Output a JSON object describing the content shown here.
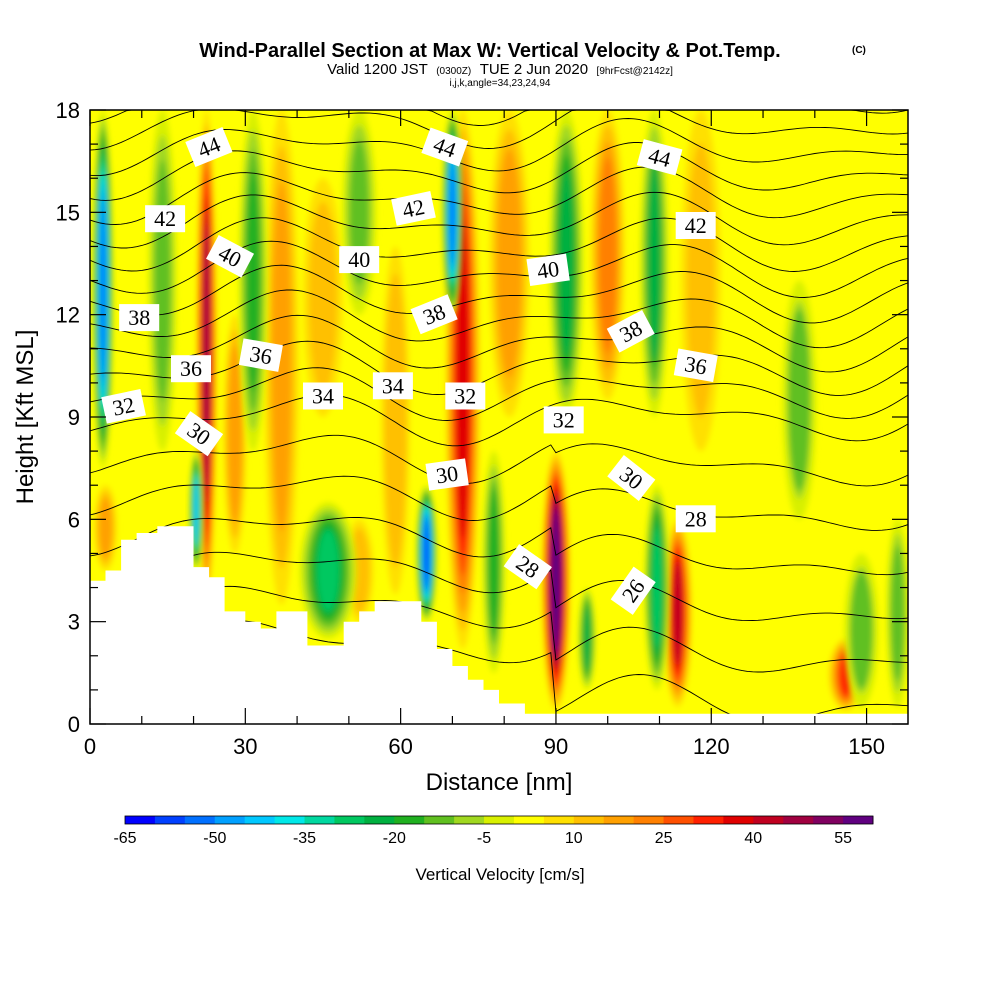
{
  "header": {
    "title": "Wind-Parallel Section at Max W: Vertical Velocity & Pot.Temp.",
    "title_tag": "(C)",
    "subtitle_valid": "Valid 1200 JST",
    "subtitle_utc": "(0300Z)",
    "subtitle_date": "TUE 2 Jun 2020",
    "subtitle_fcst": "[9hrFcst@2142z]",
    "subtitle_indices": "i,j,k,angle=34,23,24,94"
  },
  "chart_data": {
    "type": "heatmap",
    "title": "Wind-Parallel Section at Max W: Vertical Velocity & Pot.Temp.",
    "xlabel": "Distance [nm]",
    "ylabel": "Height [Kft MSL]",
    "xlim": [
      0,
      158
    ],
    "ylim": [
      0,
      18
    ],
    "xticks": [
      0,
      30,
      60,
      90,
      120,
      150
    ],
    "yticks": [
      0,
      3,
      6,
      9,
      12,
      15,
      18
    ],
    "colorbar": {
      "label": "Vertical Velocity [cm/s]",
      "tick_labels": [
        -65,
        -50,
        -35,
        -20,
        -5,
        10,
        25,
        40,
        55
      ],
      "colors": [
        "#0000ff",
        "#0040ff",
        "#0070ff",
        "#00a0ff",
        "#00c8ff",
        "#00e8e8",
        "#00d8a0",
        "#00c860",
        "#00b040",
        "#20b020",
        "#60c020",
        "#a0d820",
        "#d8f000",
        "#ffff00",
        "#ffe000",
        "#ffc000",
        "#ffa000",
        "#ff8000",
        "#ff5000",
        "#ff2000",
        "#e00000",
        "#c00020",
        "#a00040",
        "#800060",
        "#600080"
      ]
    },
    "fill_background": "#ffff00",
    "updrafts": [
      {
        "x": 22.5,
        "yTop": 18.0,
        "yBot": 3.5,
        "w": 1.8,
        "peak": 45
      },
      {
        "x": 28.0,
        "yTop": 12.0,
        "yBot": 5.0,
        "w": 2.0,
        "peak": 18
      },
      {
        "x": 37.0,
        "yTop": 18.0,
        "yBot": 3.5,
        "w": 3.0,
        "peak": 15
      },
      {
        "x": 45.0,
        "yTop": 16.0,
        "yBot": 9.0,
        "w": 3.5,
        "peak": 10
      },
      {
        "x": 59.0,
        "yTop": 14.0,
        "yBot": 3.8,
        "w": 2.5,
        "peak": 14
      },
      {
        "x": 72.0,
        "yTop": 18.0,
        "yBot": 2.2,
        "w": 3.0,
        "peak": 38
      },
      {
        "x": 81.0,
        "yTop": 18.0,
        "yBot": 9.0,
        "w": 3.5,
        "peak": 18
      },
      {
        "x": 90.0,
        "yTop": 8.0,
        "yBot": 0.4,
        "w": 2.5,
        "peak": 60
      },
      {
        "x": 100.0,
        "yTop": 18.0,
        "yBot": 9.5,
        "w": 3.0,
        "peak": 22
      },
      {
        "x": 113.5,
        "yTop": 6.0,
        "yBot": 0.5,
        "w": 2.5,
        "peak": 40
      },
      {
        "x": 118.0,
        "yTop": 18.0,
        "yBot": 8.0,
        "w": 3.5,
        "peak": 10
      },
      {
        "x": 146.0,
        "yTop": 2.5,
        "yBot": 0.4,
        "w": 3.0,
        "peak": 30
      },
      {
        "x": 3.0,
        "yTop": 7.0,
        "yBot": 4.5,
        "w": 2.0,
        "peak": 15
      },
      {
        "x": 52.0,
        "yTop": 6.0,
        "yBot": 3.0,
        "w": 2.5,
        "peak": 12
      }
    ],
    "downdrafts": [
      {
        "x": 2.5,
        "yTop": 18.0,
        "yBot": 7.5,
        "w": 1.8,
        "peak": -55
      },
      {
        "x": 14.0,
        "yTop": 18.0,
        "yBot": 8.0,
        "w": 2.5,
        "peak": -15
      },
      {
        "x": 20.5,
        "yTop": 8.0,
        "yBot": 4.5,
        "w": 1.2,
        "peak": -45
      },
      {
        "x": 31.5,
        "yTop": 18.0,
        "yBot": 8.0,
        "w": 2.5,
        "peak": -20
      },
      {
        "x": 46.0,
        "yTop": 6.5,
        "yBot": 2.5,
        "w": 5.0,
        "peak": -28
      },
      {
        "x": 52.0,
        "yTop": 18.0,
        "yBot": 12.0,
        "w": 3.0,
        "peak": -15
      },
      {
        "x": 65.0,
        "yTop": 7.0,
        "yBot": 3.0,
        "w": 1.8,
        "peak": -60
      },
      {
        "x": 70.0,
        "yTop": 18.0,
        "yBot": 12.0,
        "w": 1.8,
        "peak": -55
      },
      {
        "x": 78.0,
        "yTop": 8.0,
        "yBot": 1.5,
        "w": 2.0,
        "peak": -18
      },
      {
        "x": 92.0,
        "yTop": 18.0,
        "yBot": 9.0,
        "w": 3.0,
        "peak": -25
      },
      {
        "x": 96.0,
        "yTop": 4.0,
        "yBot": 1.0,
        "w": 1.5,
        "peak": -25
      },
      {
        "x": 109.0,
        "yTop": 18.0,
        "yBot": 9.0,
        "w": 2.5,
        "peak": -22
      },
      {
        "x": 109.5,
        "yTop": 7.0,
        "yBot": 1.0,
        "w": 2.2,
        "peak": -30
      },
      {
        "x": 137.0,
        "yTop": 13.0,
        "yBot": 6.0,
        "w": 3.0,
        "peak": -12
      },
      {
        "x": 149.0,
        "yTop": 5.0,
        "yBot": 0.5,
        "w": 3.0,
        "peak": -12
      },
      {
        "x": 156.0,
        "yTop": 6.0,
        "yBot": 0.5,
        "w": 2.0,
        "peak": -14
      }
    ],
    "terrain": [
      [
        0,
        4.2
      ],
      [
        3,
        4.2
      ],
      [
        3,
        4.5
      ],
      [
        6,
        4.5
      ],
      [
        6,
        5.4
      ],
      [
        9,
        5.4
      ],
      [
        9,
        5.6
      ],
      [
        13,
        5.6
      ],
      [
        13,
        5.8
      ],
      [
        20,
        5.8
      ],
      [
        20,
        4.6
      ],
      [
        23,
        4.6
      ],
      [
        23,
        4.3
      ],
      [
        26,
        4.3
      ],
      [
        26,
        3.3
      ],
      [
        30,
        3.3
      ],
      [
        30,
        3.0
      ],
      [
        33,
        3.0
      ],
      [
        33,
        2.8
      ],
      [
        36,
        2.8
      ],
      [
        36,
        3.3
      ],
      [
        42,
        3.3
      ],
      [
        42,
        2.3
      ],
      [
        49,
        2.3
      ],
      [
        49,
        3.0
      ],
      [
        52,
        3.0
      ],
      [
        52,
        3.3
      ],
      [
        55,
        3.3
      ],
      [
        55,
        3.6
      ],
      [
        64,
        3.6
      ],
      [
        64,
        3.0
      ],
      [
        67,
        3.0
      ],
      [
        67,
        2.2
      ],
      [
        70,
        2.2
      ],
      [
        70,
        1.7
      ],
      [
        73,
        1.7
      ],
      [
        73,
        1.3
      ],
      [
        76,
        1.3
      ],
      [
        76,
        1.0
      ],
      [
        79,
        1.0
      ],
      [
        79,
        0.6
      ],
      [
        84,
        0.6
      ],
      [
        84,
        0.3
      ],
      [
        158,
        0.3
      ]
    ],
    "theta_contours": {
      "min": 26,
      "max": 45,
      "step": 1,
      "label_values": [
        26,
        28,
        30,
        32,
        34,
        36,
        38,
        40,
        42,
        44
      ]
    },
    "contour_labels": [
      {
        "text": "44",
        "x": 23.0,
        "y": 16.9,
        "angle": -22
      },
      {
        "text": "42",
        "x": 14.5,
        "y": 14.8,
        "angle": 0
      },
      {
        "text": "40",
        "x": 27.0,
        "y": 13.7,
        "angle": 28
      },
      {
        "text": "38",
        "x": 9.5,
        "y": 11.9,
        "angle": 0
      },
      {
        "text": "36",
        "x": 19.5,
        "y": 10.4,
        "angle": 0
      },
      {
        "text": "36",
        "x": 33.0,
        "y": 10.8,
        "angle": 10
      },
      {
        "text": "32",
        "x": 6.5,
        "y": 9.3,
        "angle": -12
      },
      {
        "text": "30",
        "x": 21.0,
        "y": 8.5,
        "angle": 35
      },
      {
        "text": "34",
        "x": 45.0,
        "y": 9.6,
        "angle": 0
      },
      {
        "text": "34",
        "x": 58.5,
        "y": 9.9,
        "angle": 0
      },
      {
        "text": "40",
        "x": 52.0,
        "y": 13.6,
        "angle": 0
      },
      {
        "text": "42",
        "x": 62.5,
        "y": 15.1,
        "angle": -12
      },
      {
        "text": "44",
        "x": 68.5,
        "y": 16.9,
        "angle": 20
      },
      {
        "text": "38",
        "x": 66.5,
        "y": 12.0,
        "angle": -22
      },
      {
        "text": "32",
        "x": 72.5,
        "y": 9.6,
        "angle": 0
      },
      {
        "text": "30",
        "x": 69.0,
        "y": 7.3,
        "angle": -8
      },
      {
        "text": "40",
        "x": 88.5,
        "y": 13.3,
        "angle": -8
      },
      {
        "text": "32",
        "x": 91.5,
        "y": 8.9,
        "angle": 0
      },
      {
        "text": "28",
        "x": 84.5,
        "y": 4.6,
        "angle": 35
      },
      {
        "text": "44",
        "x": 110.0,
        "y": 16.6,
        "angle": 15
      },
      {
        "text": "42",
        "x": 117.0,
        "y": 14.6,
        "angle": 0
      },
      {
        "text": "38",
        "x": 104.5,
        "y": 11.5,
        "angle": -28
      },
      {
        "text": "36",
        "x": 117.0,
        "y": 10.5,
        "angle": 10
      },
      {
        "text": "30",
        "x": 104.5,
        "y": 7.2,
        "angle": 38
      },
      {
        "text": "28",
        "x": 117.0,
        "y": 6.0,
        "angle": 0
      },
      {
        "text": "26",
        "x": 105.0,
        "y": 3.9,
        "angle": -55
      }
    ]
  }
}
